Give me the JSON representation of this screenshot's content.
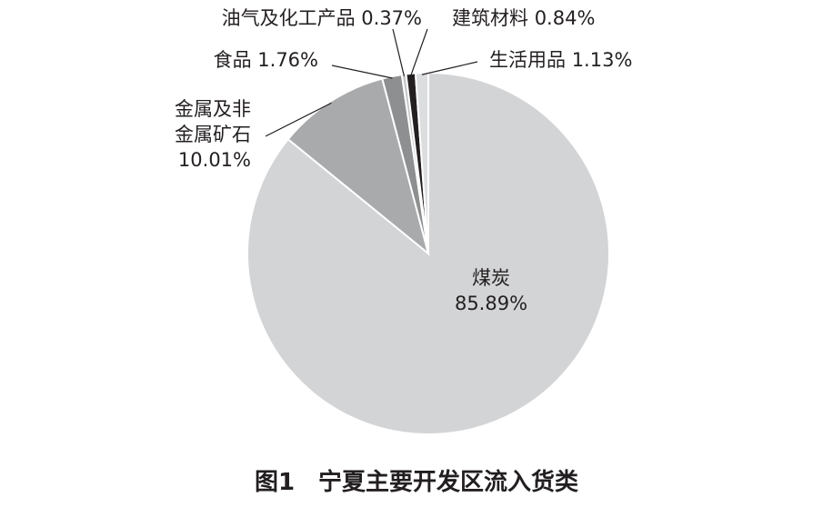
{
  "chart_data": {
    "type": "pie",
    "title": "图1　宁夏主要开发区流入货类",
    "categories": [
      "煤炭",
      "金属及非金属矿石",
      "食品",
      "油气及化工产品",
      "建筑材料",
      "生活用品"
    ],
    "values": [
      85.89,
      10.01,
      1.76,
      0.37,
      0.84,
      1.13
    ],
    "value_labels": [
      "85.89%",
      "10.01%",
      "1.76%",
      "0.37%",
      "0.84%",
      "1.13%"
    ],
    "colors": [
      "#d3d4d6",
      "#a9aaac",
      "#8e8f91",
      "#c4c5c7",
      "#231f20",
      "#dcdddf"
    ]
  }
}
